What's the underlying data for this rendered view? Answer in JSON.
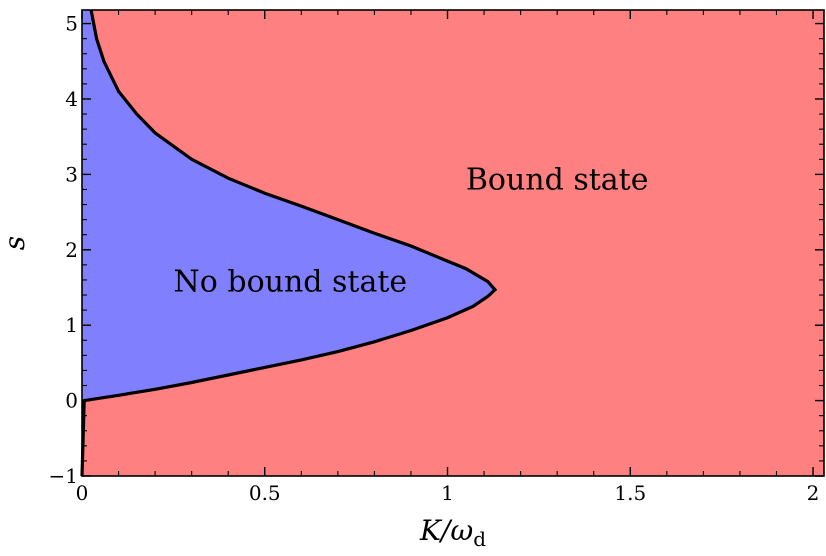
{
  "chart_data": {
    "type": "area",
    "title": "",
    "xlabel": "K/ω",
    "xlabel_sub": "d",
    "ylabel": "s",
    "xlim": [
      0,
      2.03
    ],
    "ylim": [
      -1,
      5.18
    ],
    "x_ticks": [
      {
        "value": 0,
        "label": "0"
      },
      {
        "value": 0.5,
        "label": "0.5"
      },
      {
        "value": 1,
        "label": "1"
      },
      {
        "value": 1.5,
        "label": "1.5"
      },
      {
        "value": 2,
        "label": "2"
      }
    ],
    "y_ticks": [
      {
        "value": -1,
        "label": "−1"
      },
      {
        "value": 0,
        "label": "0"
      },
      {
        "value": 1,
        "label": "1"
      },
      {
        "value": 2,
        "label": "2"
      },
      {
        "value": 3,
        "label": "3"
      },
      {
        "value": 4,
        "label": "4"
      },
      {
        "value": 5,
        "label": "5"
      }
    ],
    "grid": false,
    "regions": [
      {
        "name": "Bound state",
        "color": "#ff8080",
        "label_at": {
          "x": 1.3,
          "y": 2.8
        }
      },
      {
        "name": "No bound state",
        "color": "#8080ff",
        "label_at": {
          "x": 0.57,
          "y": 1.45
        }
      }
    ],
    "boundary_color": "#000000",
    "boundary": [
      {
        "x": 0.0,
        "y": -1.0
      },
      {
        "x": 0.003,
        "y": -0.5
      },
      {
        "x": 0.006,
        "y": 0.0
      },
      {
        "x": 0.1,
        "y": 0.07
      },
      {
        "x": 0.2,
        "y": 0.15
      },
      {
        "x": 0.3,
        "y": 0.24
      },
      {
        "x": 0.4,
        "y": 0.34
      },
      {
        "x": 0.5,
        "y": 0.44
      },
      {
        "x": 0.6,
        "y": 0.54
      },
      {
        "x": 0.7,
        "y": 0.65
      },
      {
        "x": 0.8,
        "y": 0.78
      },
      {
        "x": 0.9,
        "y": 0.93
      },
      {
        "x": 1.0,
        "y": 1.1
      },
      {
        "x": 1.07,
        "y": 1.25
      },
      {
        "x": 1.11,
        "y": 1.38
      },
      {
        "x": 1.13,
        "y": 1.47
      },
      {
        "x": 1.11,
        "y": 1.58
      },
      {
        "x": 1.05,
        "y": 1.75
      },
      {
        "x": 1.0,
        "y": 1.85
      },
      {
        "x": 0.9,
        "y": 2.05
      },
      {
        "x": 0.8,
        "y": 2.22
      },
      {
        "x": 0.7,
        "y": 2.4
      },
      {
        "x": 0.6,
        "y": 2.58
      },
      {
        "x": 0.5,
        "y": 2.75
      },
      {
        "x": 0.4,
        "y": 2.95
      },
      {
        "x": 0.3,
        "y": 3.2
      },
      {
        "x": 0.2,
        "y": 3.55
      },
      {
        "x": 0.15,
        "y": 3.8
      },
      {
        "x": 0.1,
        "y": 4.1
      },
      {
        "x": 0.06,
        "y": 4.5
      },
      {
        "x": 0.04,
        "y": 4.8
      },
      {
        "x": 0.025,
        "y": 5.18
      }
    ]
  }
}
